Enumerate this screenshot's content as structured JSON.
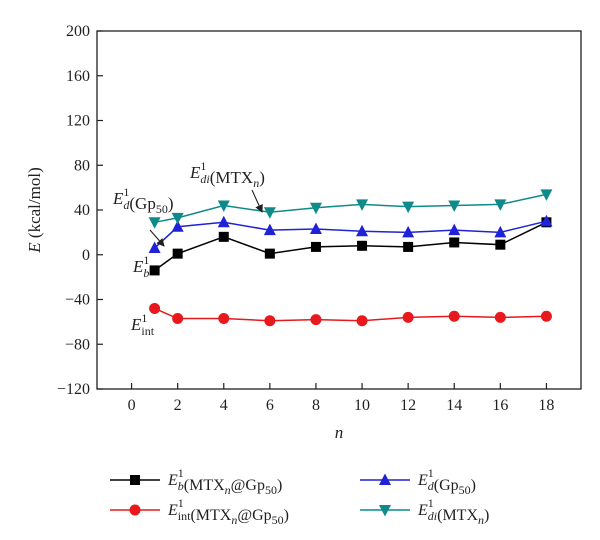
{
  "chart_data": {
    "type": "line",
    "x": [
      1,
      2,
      4,
      6,
      8,
      10,
      12,
      14,
      16,
      18
    ],
    "xticks": [
      "0",
      "2",
      "4",
      "6",
      "8",
      "10",
      "12",
      "14",
      "16",
      "18"
    ],
    "xlim": [
      -1.5,
      19.5
    ],
    "ylim": [
      -120,
      200
    ],
    "yticks": [
      "200",
      "160",
      "120",
      "80",
      "40",
      "0",
      "−40",
      "−80",
      "−120"
    ],
    "xlabel": "n",
    "ylabel": "E (kcal/mol)",
    "series": [
      {
        "id": "eb",
        "legend": {
          "sym": "E",
          "sub": "b",
          "sup": "1",
          "rest": "(MTXn@Gp50)"
        },
        "color": "#000000",
        "marker": "square",
        "values": [
          -14,
          1,
          16,
          1,
          7,
          8,
          7,
          11,
          9,
          29
        ]
      },
      {
        "id": "eint",
        "legend": {
          "sym": "E",
          "sub": "int",
          "sup": "1",
          "rest": "(MTXn@Gp50)"
        },
        "color": "#e8191c",
        "marker": "circle",
        "values": [
          -48,
          -57,
          -57,
          -59,
          -58,
          -59,
          -56,
          -55,
          -56,
          -55
        ]
      },
      {
        "id": "ed",
        "legend": {
          "sym": "E",
          "sub": "d",
          "sup": "1",
          "rest": "(Gp50)"
        },
        "color": "#1f22d6",
        "marker": "triangle-up",
        "values": [
          6,
          25,
          29,
          22,
          23,
          21,
          20,
          22,
          20,
          30
        ]
      },
      {
        "id": "edi",
        "legend": {
          "sym": "E",
          "sub": "di",
          "sup": "1",
          "rest": "(MTXn)"
        },
        "color": "#0f8a8a",
        "marker": "triangle-down",
        "values": [
          29,
          33,
          44,
          38,
          42,
          45,
          43,
          44,
          45,
          54
        ]
      }
    ],
    "annotations": [
      {
        "target": "edi",
        "sym": "E",
        "sub": "di",
        "sup": "1",
        "rest": "(MTXn)"
      },
      {
        "target": "ed",
        "sym": "E",
        "sub": "d",
        "sup": "1",
        "rest": "(Gp50)"
      },
      {
        "target": "eb",
        "sym": "E",
        "sub": "b",
        "sup": "1",
        "rest": ""
      },
      {
        "target": "eint",
        "sym": "E",
        "sub": "int",
        "sup": "1",
        "rest": ""
      }
    ]
  }
}
